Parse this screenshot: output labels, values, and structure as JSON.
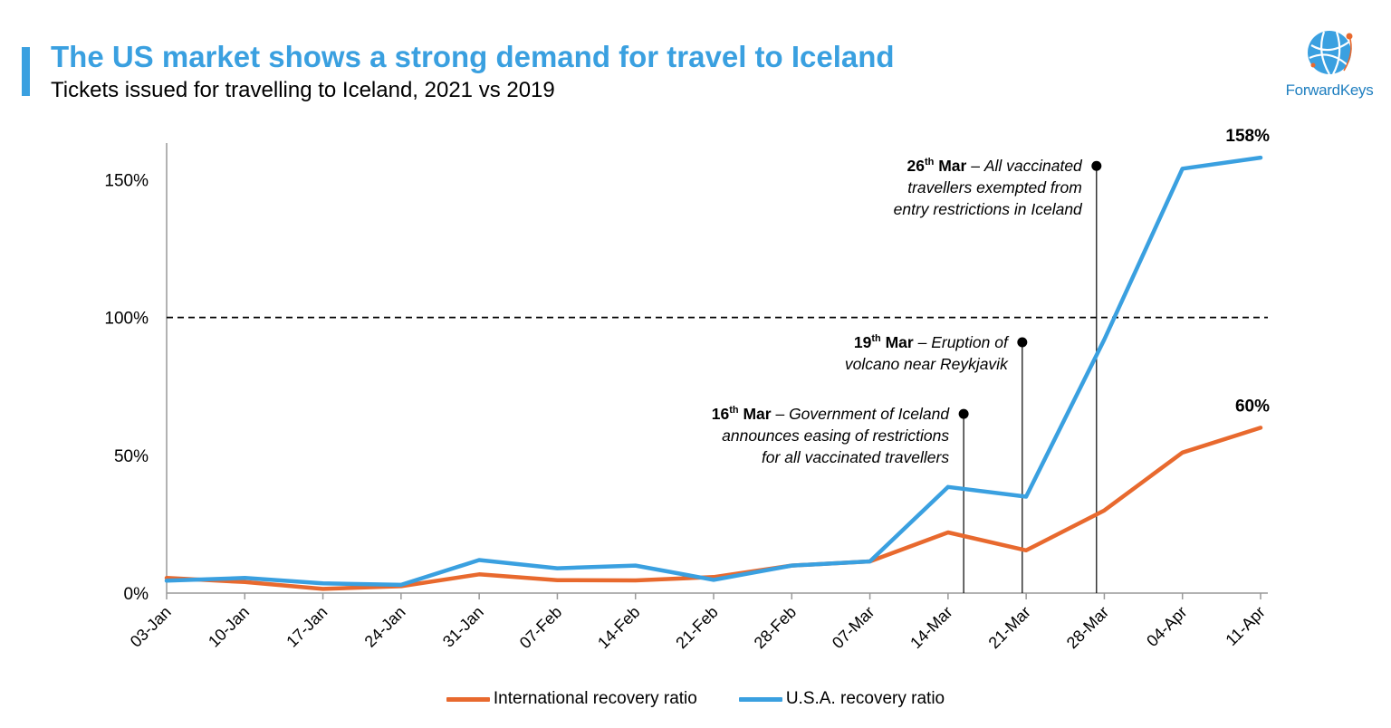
{
  "header": {
    "title": "The US market shows a strong demand for travel to Iceland",
    "subtitle": "Tickets issued for travelling to Iceland, 2021 vs 2019"
  },
  "logo": {
    "text": "ForwardKeys",
    "icon": "globe-icon"
  },
  "colors": {
    "accent": "#3aa0e0",
    "international": "#e8692e",
    "usa": "#3aa0e0"
  },
  "chart_data": {
    "type": "line",
    "title": "",
    "xlabel": "",
    "ylabel": "",
    "ylim": [
      0,
      1.6
    ],
    "y_ticks": [
      0,
      0.5,
      1.0,
      1.5
    ],
    "y_tick_labels": [
      "0%",
      "50%",
      "100%",
      "150%"
    ],
    "categories": [
      "03-Jan",
      "10-Jan",
      "17-Jan",
      "24-Jan",
      "31-Jan",
      "07-Feb",
      "14-Feb",
      "21-Feb",
      "28-Feb",
      "07-Mar",
      "14-Mar",
      "21-Mar",
      "28-Mar",
      "04-Apr",
      "11-Apr"
    ],
    "reference_line": {
      "value": 1.0,
      "style": "dashed"
    },
    "series": [
      {
        "name": "International recovery ratio",
        "color": "#e8692e",
        "values": [
          0.055,
          0.04,
          0.015,
          0.025,
          0.068,
          0.047,
          0.046,
          0.058,
          0.1,
          0.115,
          0.22,
          0.155,
          0.3,
          0.51,
          0.6
        ]
      },
      {
        "name": "U.S.A. recovery ratio",
        "color": "#3aa0e0",
        "values": [
          0.045,
          0.055,
          0.035,
          0.03,
          0.12,
          0.09,
          0.1,
          0.048,
          0.1,
          0.115,
          0.385,
          0.35,
          0.92,
          1.54,
          1.58
        ]
      }
    ],
    "end_labels": [
      {
        "series": 1,
        "text": "158%"
      },
      {
        "series": 0,
        "text": "60%"
      }
    ],
    "annotations": [
      {
        "x": 10.2,
        "y": 0.65,
        "bold": "16",
        "sup": "th",
        "bold2": " Mar",
        "text_lines": [
          "Government of Iceland",
          "announces easing of restrictions",
          "for all vaccinated travellers"
        ]
      },
      {
        "x": 10.95,
        "y": 0.91,
        "bold": "19",
        "sup": "th",
        "bold2": " Mar",
        "text_lines": [
          "Eruption of",
          "volcano near Reykjavik"
        ]
      },
      {
        "x": 11.9,
        "y": 1.55,
        "bold": "26",
        "sup": "th",
        "bold2": " Mar",
        "text_lines": [
          "All vaccinated",
          "travellers exempted from",
          "entry restrictions in Iceland"
        ]
      }
    ],
    "legend_position": "bottom"
  }
}
